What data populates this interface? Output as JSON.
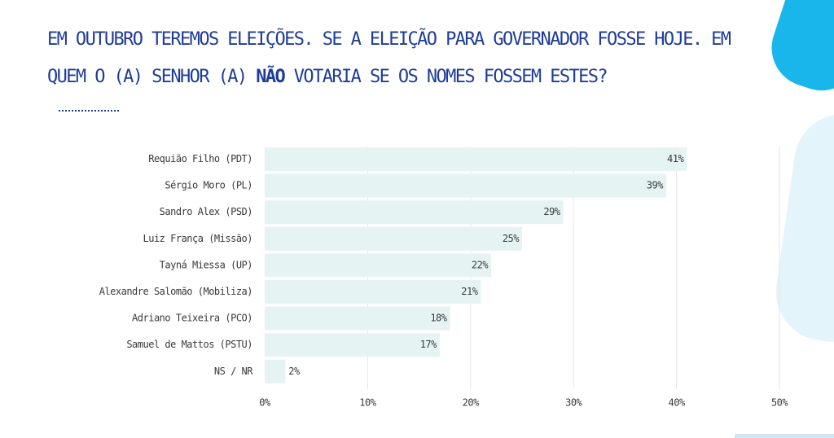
{
  "title": {
    "part1": "Em outubro teremos eleições. Se a eleição para governador fosse hoje. em quem o (a) senhor (a) ",
    "emphasis": "não",
    "part2": " votaria se os nomes fossem estes?"
  },
  "colors": {
    "title": "#1f3c99",
    "bar": "#e5f4f3",
    "grid": "#e6e6e6",
    "text": "#3a3a3a",
    "accent": "#18b6ea"
  },
  "chart_data": {
    "type": "bar",
    "orientation": "horizontal",
    "categories": [
      "Requião Filho (PDT)",
      "Sérgio Moro (PL)",
      "Sandro Alex (PSD)",
      "Luiz França (Missão)",
      "Tayná Miessa (UP)",
      "Alexandre Salomão (Mobiliza)",
      "Adriano Teixeira (PCO)",
      "Samuel de Mattos (PSTU)",
      "NS / NR"
    ],
    "values": [
      41,
      39,
      29,
      25,
      22,
      21,
      18,
      17,
      2
    ],
    "value_labels": [
      "41%",
      "39%",
      "29%",
      "25%",
      "22%",
      "21%",
      "18%",
      "17%",
      "2%"
    ],
    "xlim": [
      0,
      50
    ],
    "xticks": [
      0,
      10,
      20,
      30,
      40,
      50
    ],
    "xtick_labels": [
      "0%",
      "10%",
      "20%",
      "30%",
      "40%",
      "50%"
    ],
    "grid": true,
    "legend": "none"
  }
}
